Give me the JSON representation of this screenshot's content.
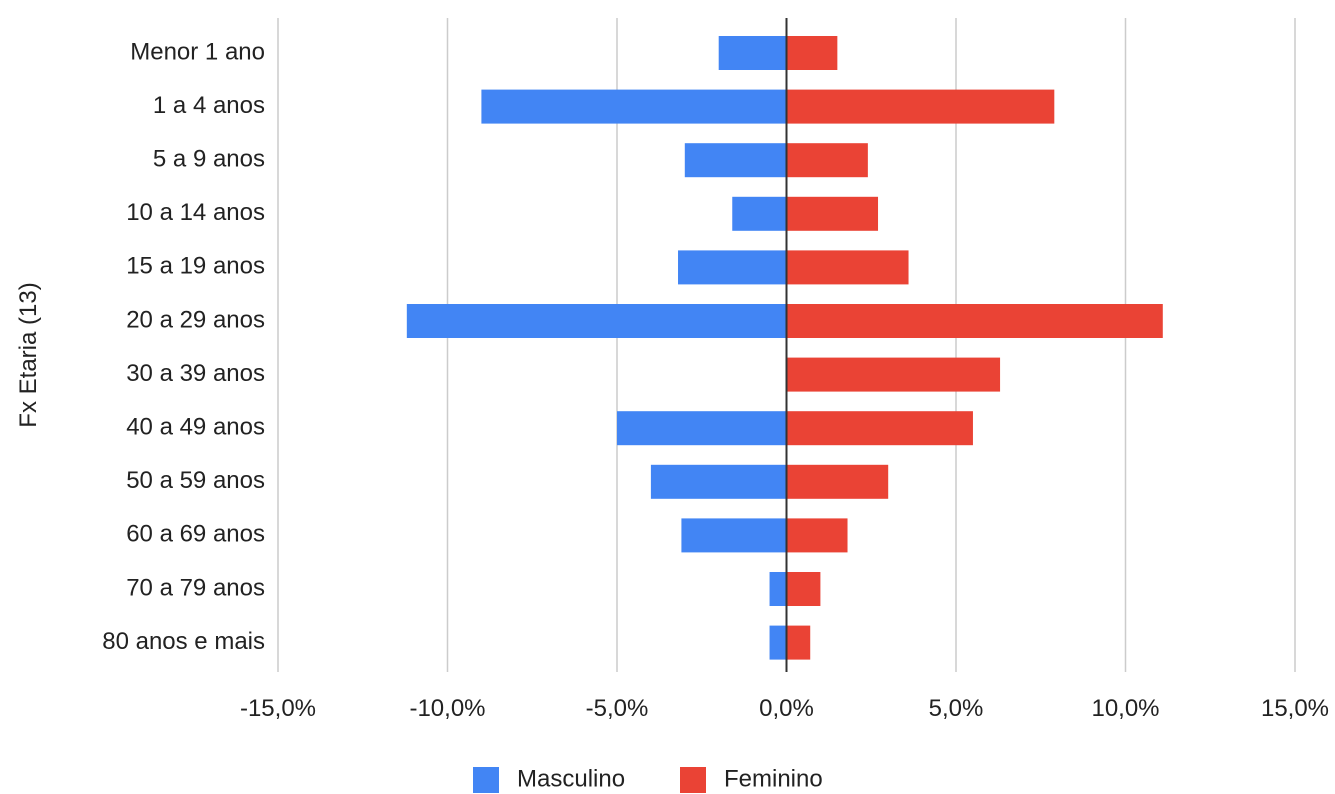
{
  "chart_data": {
    "type": "bar",
    "orientation": "horizontal",
    "ylabel": "Fx Etaria (13)",
    "xlabel": "",
    "xlim": [
      -15,
      15
    ],
    "x_ticks": [
      -15,
      -10,
      -5,
      0,
      5,
      10,
      15
    ],
    "x_tick_labels": [
      "-15,0%",
      "-10,0%",
      "-5,0%",
      "0,0%",
      "5,0%",
      "10,0%",
      "15,0%"
    ],
    "grid": true,
    "legend_position": "bottom",
    "categories": [
      "Menor 1 ano",
      "1 a 4 anos",
      "5 a 9 anos",
      "10 a 14 anos",
      "15 a 19 anos",
      "20 a 29 anos",
      "30 a 39 anos",
      "40 a 49 anos",
      "50 a 59 anos",
      "60 a 69 anos",
      "70 a 79 anos",
      "80 anos e mais"
    ],
    "series": [
      {
        "name": "Masculino",
        "color": "#4285f4",
        "values": [
          -2.0,
          -9.0,
          -3.0,
          -1.6,
          -3.2,
          -11.2,
          0.0,
          -5.0,
          -4.0,
          -3.1,
          -0.5,
          -0.5
        ]
      },
      {
        "name": "Feminino",
        "color": "#ea4335",
        "values": [
          1.5,
          7.9,
          2.4,
          2.7,
          3.6,
          11.1,
          6.3,
          5.5,
          3.0,
          1.8,
          1.0,
          0.7
        ]
      }
    ]
  }
}
